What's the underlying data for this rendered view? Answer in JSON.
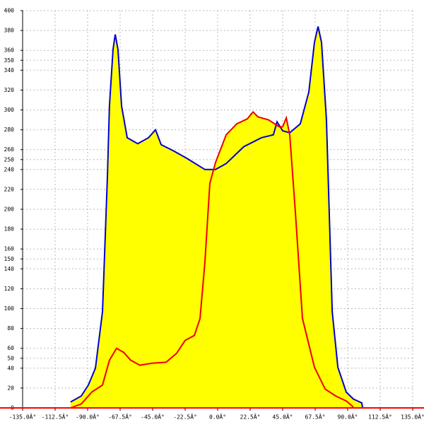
{
  "chart_data": {
    "type": "area",
    "xlim": [
      -135,
      135
    ],
    "xticks": [
      {
        "value": -135,
        "label": "-135.0Â°"
      },
      {
        "value": -112.5,
        "label": "-112.5Â°"
      },
      {
        "value": -90,
        "label": "-90.0Â°"
      },
      {
        "value": -67.5,
        "label": "-67.5Â°"
      },
      {
        "value": -45,
        "label": "-45.0Â°"
      },
      {
        "value": -22.5,
        "label": "-22.5Â°"
      },
      {
        "value": 0,
        "label": "0.0Â°"
      },
      {
        "value": 22.5,
        "label": "22.5Â°"
      },
      {
        "value": 45,
        "label": "45.0Â°"
      },
      {
        "value": 67.5,
        "label": "67.5Â°"
      },
      {
        "value": 90,
        "label": "90.0Â°"
      },
      {
        "value": 112.5,
        "label": "112.5Â°"
      },
      {
        "value": 135,
        "label": "135.0Â°"
      }
    ],
    "ylim": [
      0,
      400
    ],
    "yticks": [
      0,
      20,
      40,
      50,
      60,
      80,
      100,
      120,
      140,
      150,
      160,
      180,
      200,
      220,
      240,
      250,
      260,
      280,
      300,
      320,
      340,
      350,
      360,
      380,
      400
    ],
    "grid": true,
    "fill_color": "#ffff00",
    "axis_color": "#ff0000",
    "series": [
      {
        "color": "#0000cc",
        "x": [
          -101.8,
          -94.4,
          -89.5,
          -84.6,
          -79.7,
          -76.3,
          -74.9,
          -72.4,
          -70.9,
          -69,
          -66.5,
          -62.6,
          -55.3,
          -47.9,
          -43,
          -39.1,
          -30.8,
          -21,
          -8.8,
          -1.5,
          5.9,
          18.1,
          30.3,
          38.6,
          41.1,
          45,
          49.9,
          57.2,
          63.1,
          67,
          69.5,
          71.9,
          75.3,
          79.3,
          83.2,
          89,
          93.9,
          99.8,
          100.3
        ],
        "values": [
          6,
          12,
          23,
          40,
          97,
          233,
          304,
          361,
          376,
          361,
          304,
          272,
          266,
          272,
          280,
          265,
          259,
          251,
          240,
          240,
          246,
          263,
          272,
          275,
          288,
          279,
          277,
          286,
          318,
          368,
          384,
          368,
          290,
          97,
          41,
          16,
          9,
          5,
          0
        ]
      },
      {
        "color": "#ee0000",
        "x": [
          -101.8,
          -94.4,
          -87.1,
          -79.7,
          -74.9,
          -70,
          -65.1,
          -60.2,
          -53.8,
          -45.5,
          -35.7,
          -28.4,
          -22.5,
          -16.1,
          -12.2,
          -8.8,
          -5.4,
          -1.5,
          5.9,
          13.2,
          20.5,
          24.5,
          27.9,
          35.2,
          42.6,
          45,
          47.5,
          49.9,
          53.8,
          58.7,
          67,
          74.4,
          81.7,
          89,
          93.9
        ],
        "values": [
          0,
          4,
          16,
          23,
          48,
          60,
          56,
          48,
          43,
          45,
          46,
          55,
          68,
          73,
          90,
          147,
          226,
          247,
          275,
          286,
          291,
          298,
          293,
          290,
          283,
          283,
          292,
          275,
          197,
          90,
          41,
          19,
          12,
          7,
          1
        ]
      }
    ]
  }
}
